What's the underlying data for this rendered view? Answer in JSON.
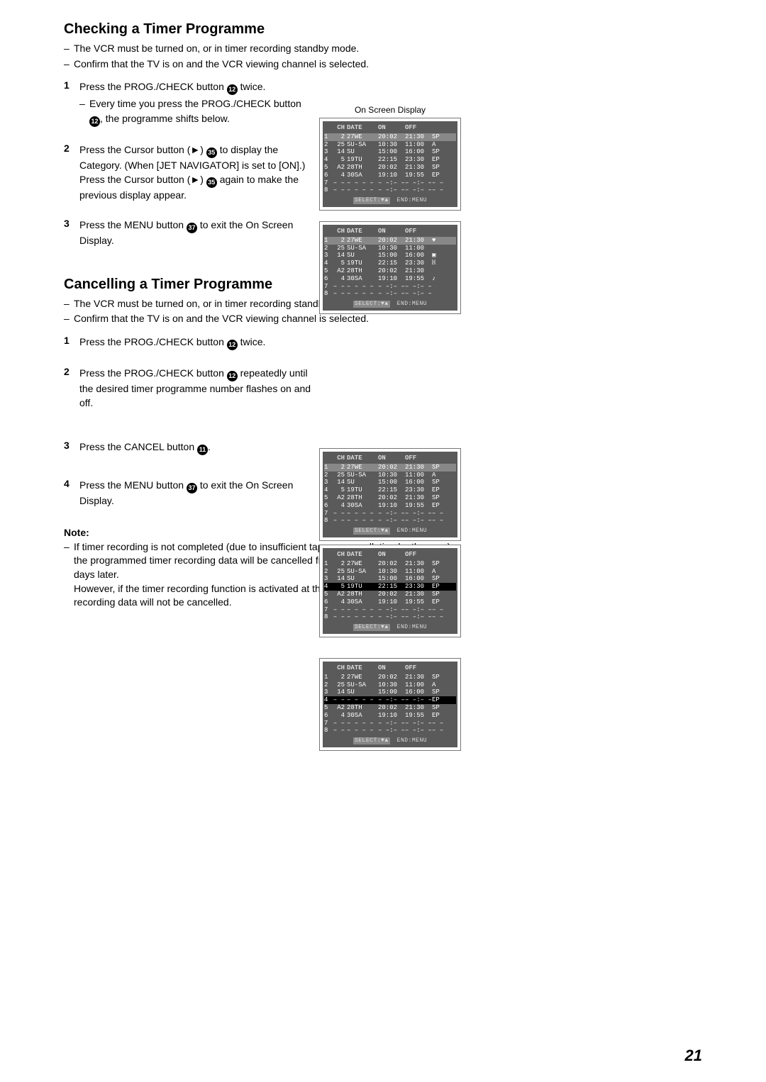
{
  "section1": {
    "title": "Checking a Timer Programme",
    "bullets": [
      "The VCR must be turned on, or in timer recording standby mode.",
      "Confirm that the TV is on and the VCR viewing channel is selected."
    ],
    "steps": [
      {
        "num": "1",
        "text_a": "Press the PROG./CHECK button ",
        "circ_a": "12",
        "text_b": " twice.",
        "sub_a": "Every time you press the PROG./CHECK button ",
        "sub_circ": "12",
        "sub_b": ", the programme shifts below."
      },
      {
        "num": "2",
        "text_a": "Press the Cursor button (►) ",
        "circ_a": "35",
        "text_b": " to display the Category. (When [JET NAVIGATOR] is set to [ON].) Press the Cursor button (►) ",
        "circ_b": "35",
        "text_c": " again to make the previous display appear."
      },
      {
        "num": "3",
        "text_a": "Press the MENU button ",
        "circ_a": "37",
        "text_b": " to exit the On Screen Display."
      }
    ]
  },
  "section2": {
    "title": "Cancelling a Timer Programme",
    "bullets": [
      "The VCR must be turned on, or in timer recording standby mode.",
      "Confirm that the TV is on and the VCR viewing channel is selected."
    ],
    "steps": [
      {
        "num": "1",
        "text_a": "Press the PROG./CHECK button ",
        "circ_a": "12",
        "text_b": " twice."
      },
      {
        "num": "2",
        "text_a": "Press the PROG./CHECK button ",
        "circ_a": "12",
        "text_b": " repeatedly until the desired timer programme number flashes on and off."
      },
      {
        "num": "3",
        "text_a": "Press the CANCEL button ",
        "circ_a": "11",
        "text_b": "."
      },
      {
        "num": "4",
        "text_a": "Press the MENU button ",
        "circ_a": "37",
        "text_b": " to exit the On Screen Display."
      }
    ]
  },
  "note": {
    "heading": "Note:",
    "text_a": "If timer recording is not completed (due to insufficient tape or cancellation by the user), the programmed timer recording data will be cancelled from the memory by 4 A.M two days later.",
    "text_b": "However, if the timer recording function is activated at that time, the programmed timer recording data will not be cancelled."
  },
  "osd": {
    "caption": "On Screen Display",
    "header": {
      "ch": "CH",
      "date": "DATE",
      "on": "ON",
      "off": "OFF"
    },
    "rows_sp": [
      {
        "n": "1",
        "ch": "2",
        "date": "27WE",
        "on": "20:02",
        "off": "21:30",
        "m": "SP"
      },
      {
        "n": "2",
        "ch": "25",
        "date": "SU-SA",
        "on": "10:30",
        "off": "11:00",
        "m": "A"
      },
      {
        "n": "3",
        "ch": "14",
        "date": "SU",
        "on": "15:00",
        "off": "16:00",
        "m": "SP"
      },
      {
        "n": "4",
        "ch": "5",
        "date": "19TU",
        "on": "22:15",
        "off": "23:30",
        "m": "EP"
      },
      {
        "n": "5",
        "ch": "A2",
        "date": "28TH",
        "on": "20:02",
        "off": "21:30",
        "m": "SP"
      },
      {
        "n": "6",
        "ch": "4",
        "date": "30SA",
        "on": "19:10",
        "off": "19:55",
        "m": "EP"
      },
      {
        "n": "7",
        "ch": "– –",
        "date": "– – – –",
        "on": "– –:– –",
        "off": "– –:– –",
        "m": "– –"
      },
      {
        "n": "8",
        "ch": "– –",
        "date": "– – – –",
        "on": "– –:– –",
        "off": "– –:– –",
        "m": "– –"
      }
    ],
    "rows_cat": [
      {
        "n": "1",
        "ch": "2",
        "date": "27WE",
        "on": "20:02",
        "off": "21:30",
        "m": "♥"
      },
      {
        "n": "2",
        "ch": "25",
        "date": "SU-SA",
        "on": "10:30",
        "off": "11:00",
        "m": ""
      },
      {
        "n": "3",
        "ch": "14",
        "date": "SU",
        "on": "15:00",
        "off": "16:00",
        "m": "▣"
      },
      {
        "n": "4",
        "ch": "5",
        "date": "19TU",
        "on": "22:15",
        "off": "23:30",
        "m": "ℍ"
      },
      {
        "n": "5",
        "ch": "A2",
        "date": "28TH",
        "on": "20:02",
        "off": "21:30",
        "m": ""
      },
      {
        "n": "6",
        "ch": "4",
        "date": "30SA",
        "on": "19:10",
        "off": "19:55",
        "m": "♪"
      },
      {
        "n": "7",
        "ch": "– –",
        "date": "– – – –",
        "on": "– –:– –",
        "off": "– –:– –",
        "m": ""
      },
      {
        "n": "8",
        "ch": "– –",
        "date": "– – – –",
        "on": "– –:– –",
        "off": "– –:– –",
        "m": ""
      }
    ],
    "rows_cancel": [
      {
        "n": "1",
        "ch": "2",
        "date": "27WE",
        "on": "20:02",
        "off": "21:30",
        "m": "SP"
      },
      {
        "n": "2",
        "ch": "25",
        "date": "SU-SA",
        "on": "10:30",
        "off": "11:00",
        "m": "A"
      },
      {
        "n": "3",
        "ch": "14",
        "date": "SU",
        "on": "15:00",
        "off": "16:00",
        "m": "SP"
      },
      {
        "n": "4",
        "ch": "– –",
        "date": "– – – –",
        "on": "– –:– –",
        "off": "– –:– –",
        "m": "EP"
      },
      {
        "n": "5",
        "ch": "A2",
        "date": "28TH",
        "on": "20:02",
        "off": "21:30",
        "m": "SP"
      },
      {
        "n": "6",
        "ch": "4",
        "date": "30SA",
        "on": "19:10",
        "off": "19:55",
        "m": "EP"
      },
      {
        "n": "7",
        "ch": "– –",
        "date": "– – – –",
        "on": "– –:– –",
        "off": "– –:– –",
        "m": "– –"
      },
      {
        "n": "8",
        "ch": "– –",
        "date": "– – – –",
        "on": "– –:– –",
        "off": "– –:– –",
        "m": "– –"
      }
    ],
    "footer_select": "SELECT:▼▲",
    "footer_end": "END:MENU"
  },
  "pageNumber": "21"
}
